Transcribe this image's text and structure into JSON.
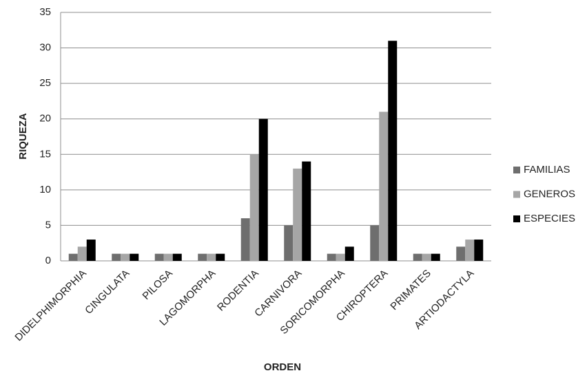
{
  "chart_data": {
    "type": "bar",
    "x_label": "ORDEN",
    "y_label": "RIQUEZA",
    "categories": [
      "DIDELPHIMORPHIA",
      "CINGULATA",
      "PILOSA",
      "LAGOMORPHA",
      "RODENTIA",
      "CARNIVORA",
      "SORICOMORPHA",
      "CHIROPTERA",
      "PRIMATES",
      "ARTIODACTYLA"
    ],
    "series": [
      {
        "name": "FAMILIAS",
        "color": "#6e6e6e",
        "values": [
          1,
          1,
          1,
          1,
          6,
          5,
          1,
          5,
          1,
          2
        ]
      },
      {
        "name": "GENEROS",
        "color": "#a6a6a6",
        "values": [
          2,
          1,
          1,
          1,
          15,
          13,
          1,
          21,
          1,
          3
        ]
      },
      {
        "name": "ESPECIES",
        "color": "#000000",
        "values": [
          3,
          1,
          1,
          1,
          20,
          14,
          2,
          31,
          1,
          3
        ]
      }
    ],
    "ylim": [
      0,
      35
    ],
    "yticks": [
      0,
      5,
      10,
      15,
      20,
      25,
      30,
      35
    ],
    "grid": true,
    "legend": "right"
  }
}
